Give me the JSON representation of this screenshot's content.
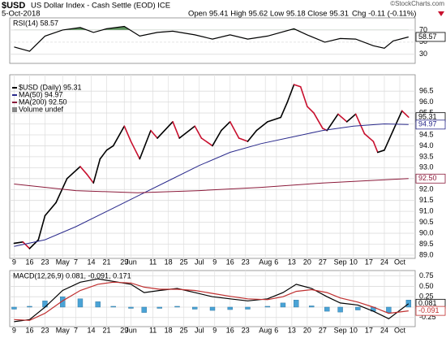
{
  "header": {
    "symbol": "$USD",
    "name": "US Dollar Index - Cash Settle (EOD) ICE",
    "date": "5-Oct-2018",
    "ohlc": "Open 95.41 High 95.62 Low 95.18 Close 95.31",
    "change": "Chg -0.11 (-0.11%)",
    "credit": "©StockCharts.com"
  },
  "chart_data": [
    {
      "type": "line",
      "legend": "RSI(14) 58.57",
      "xlim": [
        -2,
        182
      ],
      "ylim": [
        15,
        90
      ],
      "yticks": [
        30,
        50,
        70
      ],
      "fill_above": 70,
      "fill_color": "#3f7f3f",
      "series": [
        {
          "color": "#000000",
          "box_label": "58.57",
          "x": [
            0,
            7,
            14,
            22,
            30,
            36,
            42,
            50,
            57,
            65,
            72,
            82,
            90,
            98,
            106,
            115,
            127,
            133,
            141,
            148,
            155,
            163,
            168,
            172,
            179
          ],
          "values": [
            42,
            35,
            60,
            70,
            74,
            66,
            72,
            76,
            60,
            66,
            68,
            62,
            55,
            62,
            55,
            60,
            72,
            62,
            50,
            56,
            55,
            44,
            40,
            52,
            58.57
          ]
        }
      ]
    },
    {
      "type": "line",
      "legend_note": "Volume undef",
      "xlim": [
        -2,
        182
      ],
      "ylim": [
        88.85,
        97.25
      ],
      "yticks": [
        {
          "value": 89,
          "label": "89.0"
        },
        89.5,
        {
          "value": 90,
          "label": "90.0"
        },
        90.5,
        {
          "value": 91,
          "label": "91.0"
        },
        91.5,
        {
          "value": 92,
          "label": "92.0"
        },
        92.5,
        {
          "value": 93,
          "label": "93.0"
        },
        93.5,
        {
          "value": 94,
          "label": "94.0"
        },
        94.5,
        {
          "value": 95,
          "label": "95.0"
        },
        95.5,
        {
          "value": 96,
          "label": "96.0"
        },
        96.5
      ],
      "xticks": [
        {
          "value": 0,
          "label": "9"
        },
        {
          "value": 7,
          "label": "16"
        },
        {
          "value": 14,
          "label": "23"
        },
        {
          "value": 22,
          "label": "May"
        },
        {
          "value": 28,
          "label": "7"
        },
        {
          "value": 35,
          "label": "14"
        },
        {
          "value": 42,
          "label": "21"
        },
        {
          "value": 50,
          "label": "29"
        },
        {
          "value": 53,
          "label": "Jun"
        },
        {
          "value": 63,
          "label": "11"
        },
        {
          "value": 70,
          "label": "18"
        },
        {
          "value": 77,
          "label": "25"
        },
        {
          "value": 84,
          "label": "Jul"
        },
        {
          "value": 91,
          "label": "9"
        },
        {
          "value": 98,
          "label": "16"
        },
        {
          "value": 105,
          "label": "23"
        },
        {
          "value": 114,
          "label": "Aug"
        },
        {
          "value": 119,
          "label": "6"
        },
        {
          "value": 126,
          "label": "13"
        },
        {
          "value": 133,
          "label": "20"
        },
        {
          "value": 140,
          "label": "27"
        },
        {
          "value": 148,
          "label": "Sep"
        },
        {
          "value": 154,
          "label": "10"
        },
        {
          "value": 161,
          "label": "17"
        },
        {
          "value": 168,
          "label": "24"
        },
        {
          "value": 175,
          "label": "Oct"
        }
      ],
      "series": [
        {
          "name": "$USD (Daily) 95.31",
          "color": "#000000",
          "down_color": "#c8102e",
          "box_label": "95.31",
          "x": [
            0,
            4,
            7,
            11,
            14,
            19,
            24,
            30,
            33,
            36,
            39,
            42,
            45,
            50,
            53,
            57,
            62,
            65,
            72,
            75,
            82,
            85,
            90,
            94,
            98,
            102,
            106,
            110,
            115,
            121,
            124,
            127,
            130,
            133,
            136,
            140,
            142,
            147,
            151,
            155,
            159,
            163,
            165,
            168,
            172,
            176,
            179
          ],
          "values": [
            89.54,
            89.6,
            89.3,
            89.7,
            90.8,
            91.4,
            92.5,
            93.05,
            92.7,
            92.3,
            93.4,
            93.8,
            94.0,
            94.9,
            94.2,
            93.4,
            94.7,
            94.35,
            95.1,
            94.35,
            94.9,
            94.35,
            94.0,
            94.7,
            95.1,
            94.35,
            94.2,
            94.7,
            95.1,
            95.3,
            96.0,
            96.8,
            96.7,
            95.8,
            95.5,
            94.8,
            94.7,
            95.45,
            95.1,
            95.45,
            94.55,
            94.2,
            93.7,
            93.8,
            94.7,
            95.6,
            95.31
          ]
        },
        {
          "name": "MA(50) 94.97",
          "color": "#2a2a8c",
          "box_label": "94.97",
          "x": [
            0,
            14,
            28,
            42,
            56,
            70,
            84,
            98,
            112,
            126,
            140,
            154,
            168,
            179
          ],
          "values": [
            89.4,
            89.7,
            90.3,
            91.0,
            91.7,
            92.4,
            93.1,
            93.7,
            94.1,
            94.4,
            94.7,
            94.9,
            95.0,
            94.97
          ]
        },
        {
          "name": "MA(200) 92.50",
          "color": "#8b1a3a",
          "box_label": "92.50",
          "x": [
            0,
            28,
            56,
            84,
            112,
            140,
            179
          ],
          "values": [
            92.25,
            91.95,
            91.85,
            91.95,
            92.1,
            92.3,
            92.5
          ]
        }
      ]
    },
    {
      "type": "line",
      "legend": "MACD(12,26,9) 0.081, -0.091, 0.171",
      "xlim": [
        -2,
        182
      ],
      "ylim": [
        -0.47,
        0.88
      ],
      "yticks": [
        -0.25,
        {
          "value": 0,
          "label": "0.00"
        },
        0.25,
        {
          "value": 0.5,
          "label": "0.50"
        },
        0.75
      ],
      "xticks": [
        {
          "value": 0,
          "label": "9"
        },
        {
          "value": 7,
          "label": "16"
        },
        {
          "value": 14,
          "label": "23"
        },
        {
          "value": 22,
          "label": "May"
        },
        {
          "value": 28,
          "label": "7"
        },
        {
          "value": 35,
          "label": "14"
        },
        {
          "value": 42,
          "label": "21"
        },
        {
          "value": 50,
          "label": "29"
        },
        {
          "value": 53,
          "label": "Jun"
        },
        {
          "value": 63,
          "label": "11"
        },
        {
          "value": 70,
          "label": "18"
        },
        {
          "value": 77,
          "label": "25"
        },
        {
          "value": 84,
          "label": "Jul"
        },
        {
          "value": 91,
          "label": "9"
        },
        {
          "value": 98,
          "label": "16"
        },
        {
          "value": 105,
          "label": "23"
        },
        {
          "value": 114,
          "label": "Aug"
        },
        {
          "value": 119,
          "label": "6"
        },
        {
          "value": 126,
          "label": "13"
        },
        {
          "value": 133,
          "label": "20"
        },
        {
          "value": 140,
          "label": "27"
        },
        {
          "value": 148,
          "label": "Sep"
        },
        {
          "value": 154,
          "label": "10"
        },
        {
          "value": 161,
          "label": "17"
        },
        {
          "value": 168,
          "label": "24"
        },
        {
          "value": 175,
          "label": "Oct"
        }
      ],
      "series": [
        {
          "type": "bar",
          "color": "#4aa3d6",
          "x": [
            0,
            7,
            14,
            22,
            30,
            38,
            45,
            53,
            59,
            66,
            74,
            82,
            90,
            98,
            106,
            115,
            122,
            128,
            135,
            142,
            148,
            156,
            163,
            170,
            179
          ],
          "values": [
            -0.05,
            0.02,
            0.15,
            0.25,
            0.2,
            0.13,
            0.02,
            -0.03,
            -0.13,
            -0.03,
            0.02,
            -0.05,
            -0.08,
            -0.06,
            -0.05,
            0.02,
            0.1,
            0.17,
            0.03,
            -0.1,
            -0.12,
            -0.07,
            -0.1,
            -0.13,
            0.171
          ]
        },
        {
          "color": "#000000",
          "box_label": "0.081",
          "x": [
            0,
            7,
            14,
            22,
            30,
            38,
            45,
            53,
            59,
            66,
            74,
            82,
            90,
            98,
            106,
            115,
            122,
            128,
            135,
            142,
            148,
            156,
            163,
            170,
            179
          ],
          "values": [
            -0.35,
            -0.3,
            0.0,
            0.4,
            0.6,
            0.68,
            0.62,
            0.55,
            0.35,
            0.4,
            0.45,
            0.35,
            0.25,
            0.2,
            0.15,
            0.2,
            0.35,
            0.55,
            0.45,
            0.25,
            0.1,
            0.05,
            -0.1,
            -0.28,
            0.081
          ]
        },
        {
          "color": "#c03030",
          "box_label": "-0.091",
          "x": [
            0,
            7,
            14,
            22,
            30,
            38,
            45,
            53,
            59,
            66,
            74,
            82,
            90,
            98,
            106,
            115,
            122,
            128,
            135,
            142,
            148,
            156,
            163,
            170,
            179
          ],
          "values": [
            -0.3,
            -0.32,
            -0.15,
            0.15,
            0.4,
            0.55,
            0.6,
            0.58,
            0.48,
            0.43,
            0.43,
            0.4,
            0.33,
            0.26,
            0.2,
            0.18,
            0.25,
            0.38,
            0.42,
            0.35,
            0.22,
            0.12,
            0.0,
            -0.15,
            -0.091
          ]
        }
      ]
    }
  ]
}
